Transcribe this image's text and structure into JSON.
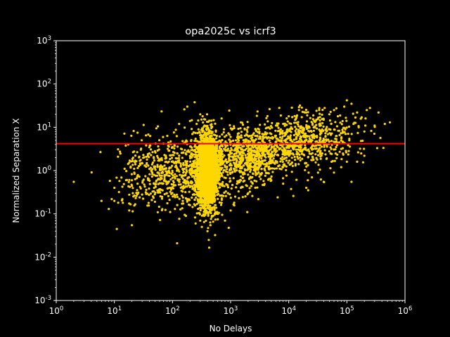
{
  "chart_data": {
    "type": "scatter",
    "title": "opa2025c vs icrf3",
    "xlabel": "No Delays",
    "ylabel": "Normalized Separation X",
    "x_scale": "log",
    "y_scale": "log",
    "xlim": [
      1,
      1000000
    ],
    "ylim": [
      0.001,
      1000
    ],
    "x_ticks": [
      {
        "base": "10",
        "exp": "0"
      },
      {
        "base": "10",
        "exp": "1"
      },
      {
        "base": "10",
        "exp": "2"
      },
      {
        "base": "10",
        "exp": "3"
      },
      {
        "base": "10",
        "exp": "4"
      },
      {
        "base": "10",
        "exp": "5"
      },
      {
        "base": "10",
        "exp": "6"
      }
    ],
    "y_ticks": [
      {
        "base": "10",
        "exp": "-3"
      },
      {
        "base": "10",
        "exp": "-2"
      },
      {
        "base": "10",
        "exp": "-1"
      },
      {
        "base": "10",
        "exp": "0"
      },
      {
        "base": "10",
        "exp": "1"
      },
      {
        "base": "10",
        "exp": "2"
      },
      {
        "base": "10",
        "exp": "3"
      }
    ],
    "grid": false,
    "background": "#000000",
    "point_color": "#ffd700",
    "threshold_line": {
      "y": 4.2,
      "color": "#ff0000"
    },
    "point_count_approx": 4500,
    "points": [
      [
        2,
        0.55
      ],
      [
        6,
        0.2
      ],
      [
        8,
        0.13
      ],
      [
        9,
        0.22
      ],
      [
        10,
        0.4
      ],
      [
        10,
        0.2
      ],
      [
        11,
        0.045
      ],
      [
        12,
        0.32
      ],
      [
        14,
        0.18
      ],
      [
        15,
        1.1
      ],
      [
        18,
        0.12
      ],
      [
        20,
        0.6
      ],
      [
        20,
        0.055
      ],
      [
        22,
        0.9
      ],
      [
        24,
        0.26
      ],
      [
        25,
        7.5
      ],
      [
        25,
        0.5
      ],
      [
        30,
        0.28
      ],
      [
        30,
        1.5
      ],
      [
        35,
        6.5
      ],
      [
        40,
        2.5
      ],
      [
        45,
        0.9
      ],
      [
        50,
        2.8
      ],
      [
        55,
        0.35
      ],
      [
        60,
        1.7
      ],
      [
        65,
        0.65
      ],
      [
        70,
        4.2
      ],
      [
        80,
        0.3
      ],
      [
        90,
        0.4
      ],
      [
        100,
        3.5
      ],
      [
        110,
        0.13
      ],
      [
        120,
        0.021
      ],
      [
        130,
        0.55
      ],
      [
        140,
        3.2
      ],
      [
        150,
        0.2
      ],
      [
        160,
        1.1
      ],
      [
        170,
        0.09
      ],
      [
        180,
        0.22
      ],
      [
        200,
        0.16
      ],
      [
        220,
        0.9
      ],
      [
        130,
        12
      ],
      [
        160,
        26
      ],
      [
        180,
        30
      ],
      [
        200,
        14
      ],
      [
        240,
        38
      ],
      [
        260,
        12
      ],
      [
        300,
        20
      ],
      [
        330,
        18
      ],
      [
        280,
        9
      ],
      [
        220,
        7
      ],
      [
        250,
        0.06
      ],
      [
        300,
        0.07
      ],
      [
        320,
        0.05
      ],
      [
        350,
        0.065
      ],
      [
        400,
        0.04
      ],
      [
        420,
        0.025
      ],
      [
        450,
        0.055
      ],
      [
        500,
        0.09
      ],
      [
        550,
        0.11
      ],
      [
        600,
        0.075
      ],
      [
        700,
        0.18
      ],
      [
        800,
        0.07
      ],
      [
        900,
        0.3
      ],
      [
        1000,
        0.12
      ],
      [
        1200,
        0.25
      ],
      [
        1500,
        0.4
      ],
      [
        2000,
        0.3
      ],
      [
        3000,
        0.22
      ],
      [
        5000,
        0.6
      ],
      [
        8000,
        0.5
      ],
      [
        12000,
        0.26
      ],
      [
        20000,
        0.4
      ],
      [
        25000,
        0.7
      ],
      [
        40000,
        0.55
      ],
      [
        60000,
        0.9
      ],
      [
        80000,
        1.2
      ],
      [
        100000,
        1.6
      ],
      [
        120000,
        0.55
      ],
      [
        150000,
        1.6
      ],
      [
        200000,
        2.2
      ],
      [
        700,
        16
      ],
      [
        1000,
        6
      ],
      [
        1500,
        13
      ],
      [
        2000,
        10
      ],
      [
        2500,
        5
      ],
      [
        5000,
        7
      ],
      [
        8000,
        12
      ],
      [
        10000,
        18
      ],
      [
        15000,
        25
      ],
      [
        20000,
        22
      ],
      [
        30000,
        24
      ],
      [
        40000,
        15
      ],
      [
        50000,
        20
      ],
      [
        70000,
        18
      ],
      [
        90000,
        30
      ],
      [
        100000,
        42
      ],
      [
        120000,
        35
      ],
      [
        150000,
        22
      ],
      [
        180000,
        17
      ],
      [
        220000,
        25
      ],
      [
        250000,
        28
      ],
      [
        300000,
        11
      ],
      [
        350000,
        22
      ],
      [
        450000,
        12
      ],
      [
        550000,
        13
      ],
      [
        200000,
        8
      ],
      [
        160000,
        10
      ],
      [
        130000,
        12
      ],
      [
        110000,
        5
      ],
      [
        95000,
        7
      ]
    ],
    "clusters": [
      {
        "x_log_mean": 2.6,
        "x_log_sd": 0.09,
        "y_log_mean": 0.0,
        "y_log_sd": 0.42,
        "n": 2400
      },
      {
        "x_log_mean": 2.3,
        "x_log_sd": 0.45,
        "y_log_mean": -0.05,
        "y_log_sd": 0.4,
        "n": 700
      },
      {
        "x_log_mean": 3.35,
        "x_log_sd": 0.3,
        "y_log_mean": 0.35,
        "y_log_sd": 0.3,
        "n": 650
      },
      {
        "x_log_mean": 4.25,
        "x_log_sd": 0.45,
        "y_log_mean": 0.7,
        "y_log_sd": 0.32,
        "n": 650
      },
      {
        "x_log_mean": 1.6,
        "x_log_sd": 0.35,
        "y_log_mean": -0.05,
        "y_log_sd": 0.45,
        "n": 160
      }
    ]
  }
}
